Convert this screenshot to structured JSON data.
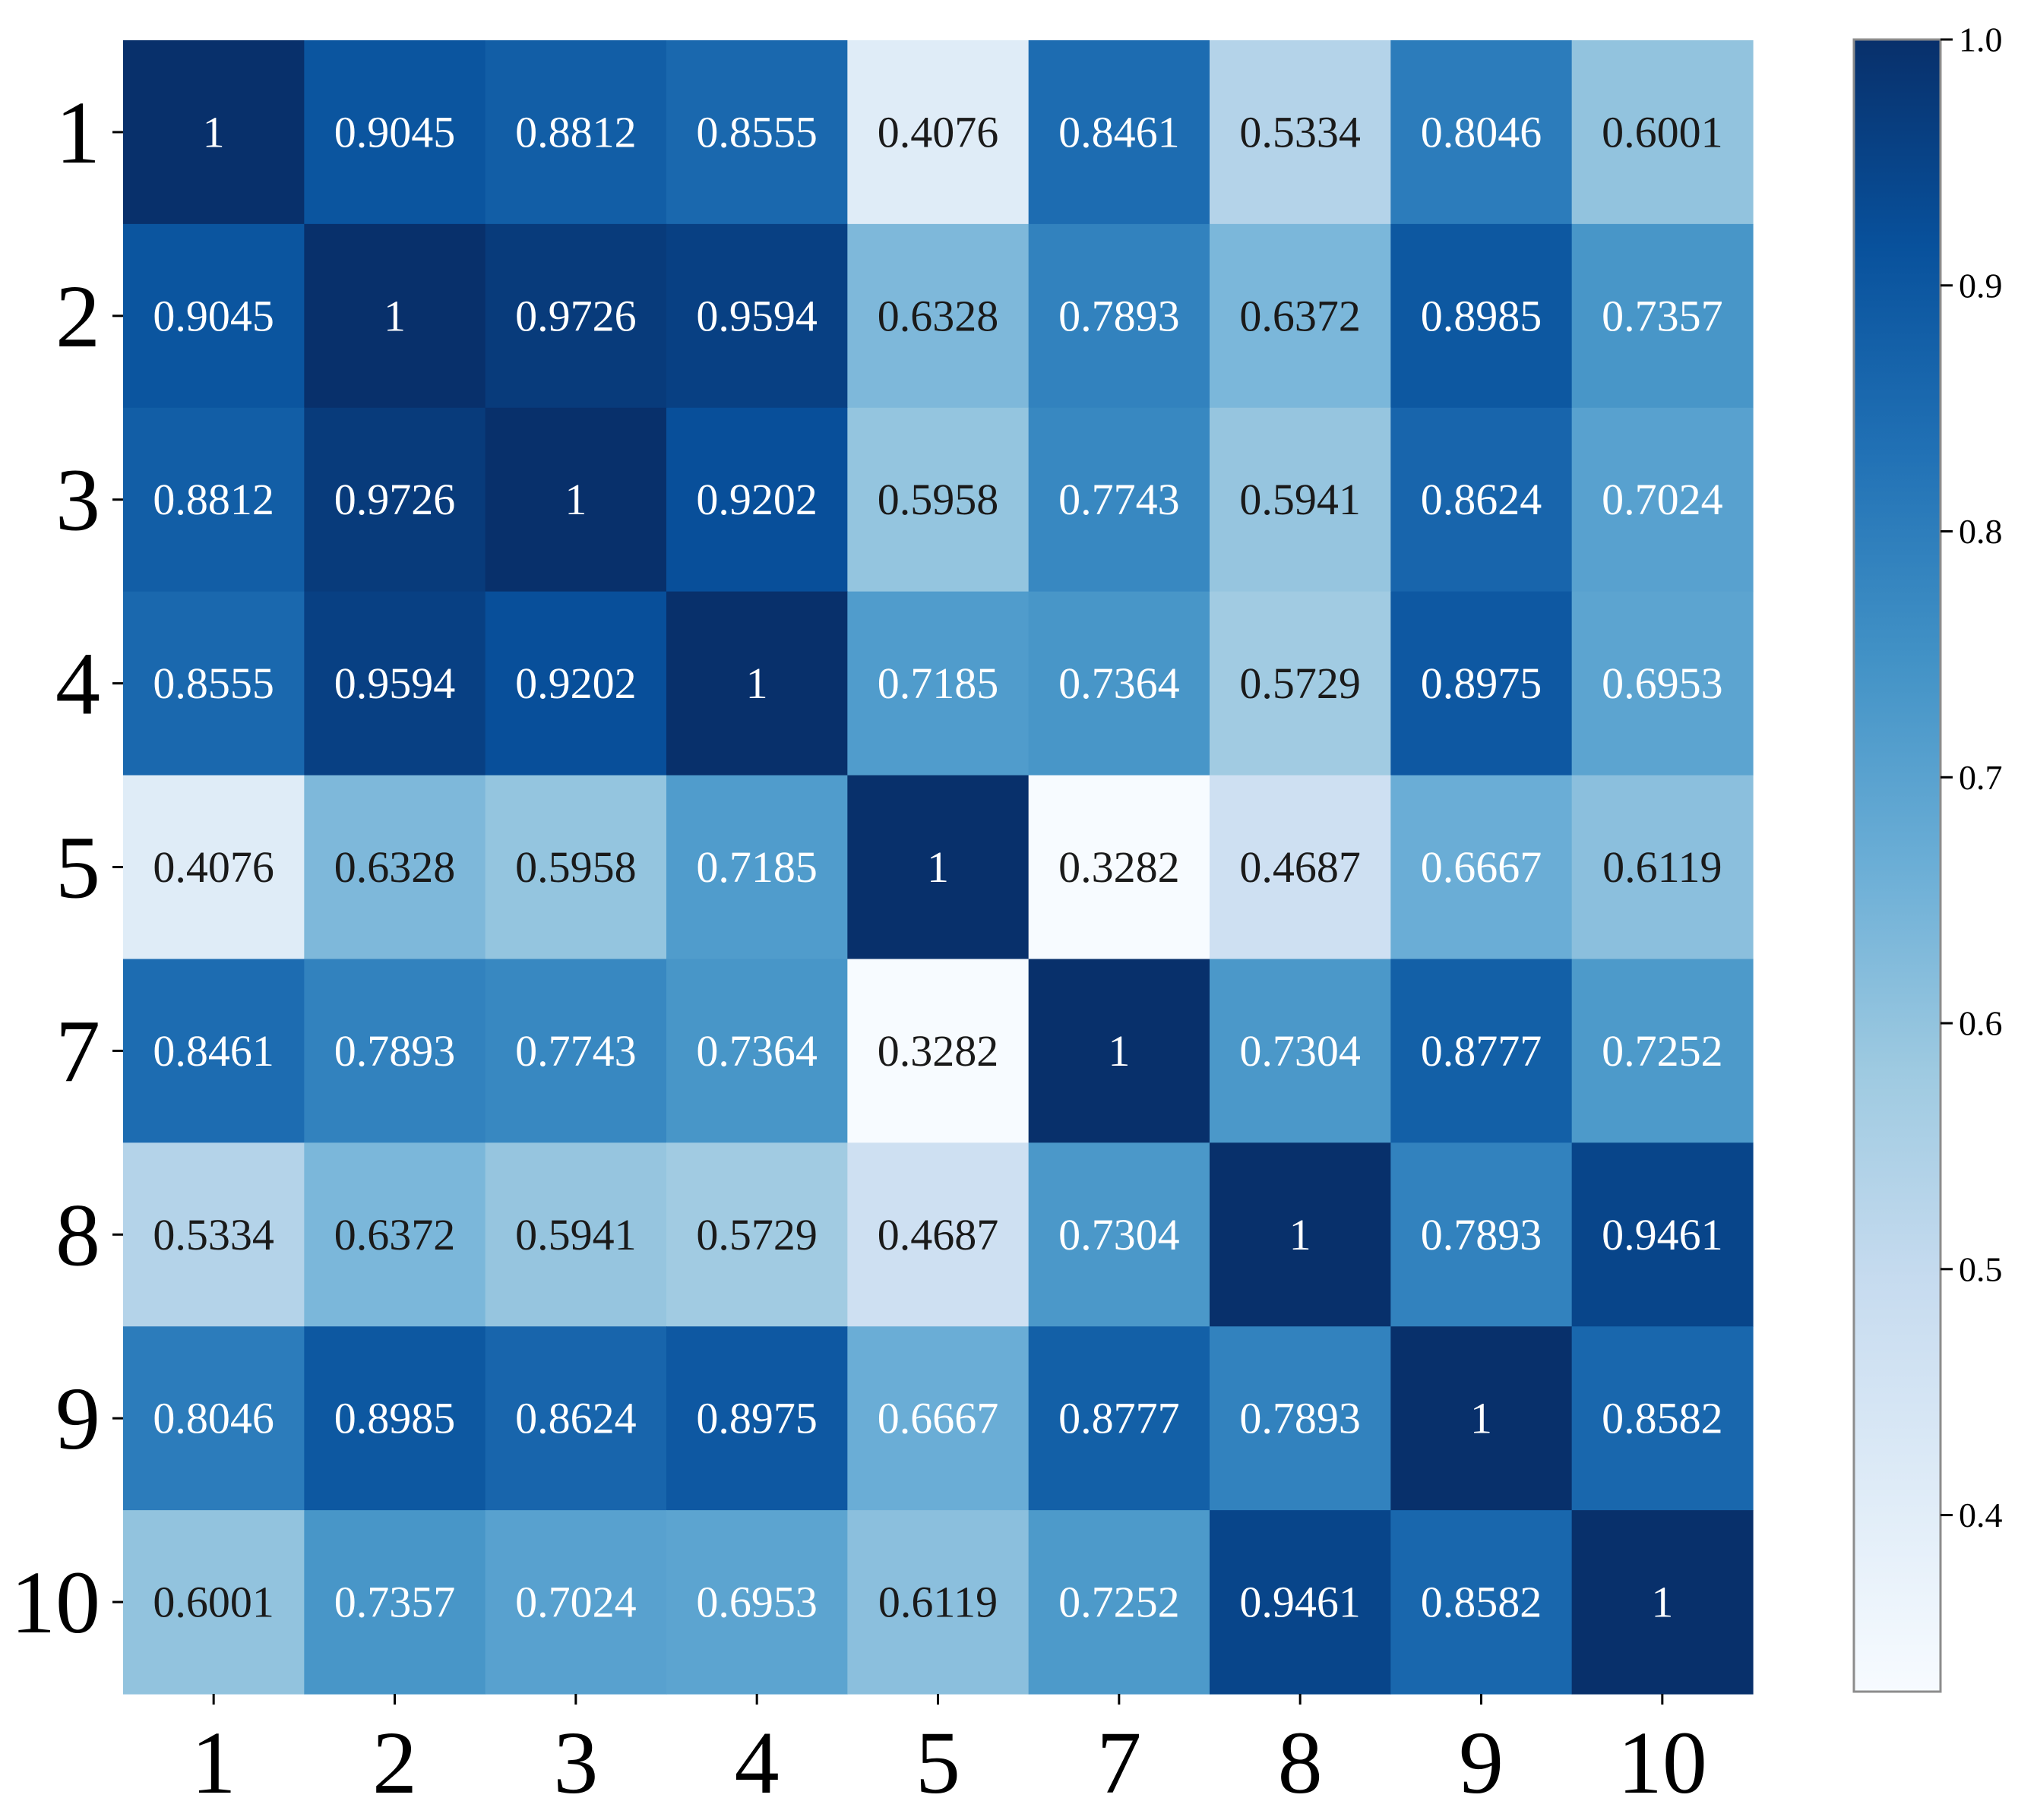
{
  "chart_data": {
    "type": "heatmap",
    "title": "",
    "xlabel": "",
    "ylabel": "",
    "row_labels": [
      "1",
      "2",
      "3",
      "4",
      "5",
      "7",
      "8",
      "9",
      "10"
    ],
    "col_labels": [
      "1",
      "2",
      "3",
      "4",
      "5",
      "7",
      "8",
      "9",
      "10"
    ],
    "values": [
      [
        1,
        0.9045,
        0.8812,
        0.8555,
        0.4076,
        0.8461,
        0.5334,
        0.8046,
        0.6001
      ],
      [
        0.9045,
        1,
        0.9726,
        0.9594,
        0.6328,
        0.7893,
        0.6372,
        0.8985,
        0.7357
      ],
      [
        0.8812,
        0.9726,
        1,
        0.9202,
        0.5958,
        0.7743,
        0.5941,
        0.8624,
        0.7024
      ],
      [
        0.8555,
        0.9594,
        0.9202,
        1,
        0.7185,
        0.7364,
        0.5729,
        0.8975,
        0.6953
      ],
      [
        0.4076,
        0.6328,
        0.5958,
        0.7185,
        1,
        0.3282,
        0.4687,
        0.6667,
        0.6119
      ],
      [
        0.8461,
        0.7893,
        0.7743,
        0.7364,
        0.3282,
        1,
        0.7304,
        0.8777,
        0.7252
      ],
      [
        0.5334,
        0.6372,
        0.5941,
        0.5729,
        0.4687,
        0.7304,
        1,
        0.7893,
        0.9461
      ],
      [
        0.8046,
        0.8985,
        0.8624,
        0.8975,
        0.6667,
        0.8777,
        0.7893,
        1,
        0.8582
      ],
      [
        0.6001,
        0.7357,
        0.7024,
        0.6953,
        0.6119,
        0.7252,
        0.9461,
        0.8582,
        1
      ]
    ],
    "value_labels": [
      [
        "1",
        "0.9045",
        "0.8812",
        "0.8555",
        "0.4076",
        "0.8461",
        "0.5334",
        "0.8046",
        "0.6001"
      ],
      [
        "0.9045",
        "1",
        "0.9726",
        "0.9594",
        "0.6328",
        "0.7893",
        "0.6372",
        "0.8985",
        "0.7357"
      ],
      [
        "0.8812",
        "0.9726",
        "1",
        "0.9202",
        "0.5958",
        "0.7743",
        "0.5941",
        "0.8624",
        "0.7024"
      ],
      [
        "0.8555",
        "0.9594",
        "0.9202",
        "1",
        "0.7185",
        "0.7364",
        "0.5729",
        "0.8975",
        "0.6953"
      ],
      [
        "0.4076",
        "0.6328",
        "0.5958",
        "0.7185",
        "1",
        "0.3282",
        "0.4687",
        "0.6667",
        "0.6119"
      ],
      [
        "0.8461",
        "0.7893",
        "0.7743",
        "0.7364",
        "0.3282",
        "1",
        "0.7304",
        "0.8777",
        "0.7252"
      ],
      [
        "0.5334",
        "0.6372",
        "0.5941",
        "0.5729",
        "0.4687",
        "0.7304",
        "1",
        "0.7893",
        "0.9461"
      ],
      [
        "0.8046",
        "0.8985",
        "0.8624",
        "0.8975",
        "0.6667",
        "0.8777",
        "0.7893",
        "1",
        "0.8582"
      ],
      [
        "0.6001",
        "0.7357",
        "0.7024",
        "0.6953",
        "0.6119",
        "0.7252",
        "0.9461",
        "0.8582",
        "1"
      ]
    ],
    "colormap": "Blues",
    "color_range": [
      0.3282,
      1.0
    ],
    "colorbar": {
      "ticks": [
        0.4,
        0.5,
        0.6,
        0.7,
        0.8,
        0.9,
        1.0
      ],
      "tick_labels": [
        "0.4",
        "0.5",
        "0.6",
        "0.7",
        "0.8",
        "0.9",
        "1.0"
      ],
      "placement": "right"
    },
    "text_color_dark": "#1a1a1a",
    "text_color_light": "#ffffff",
    "text_threshold": 0.66
  }
}
